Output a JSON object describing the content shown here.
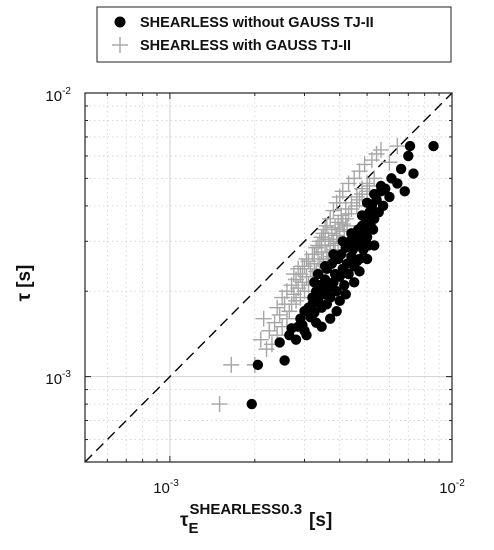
{
  "chart_data": {
    "type": "scatter",
    "xscale": "log",
    "yscale": "log",
    "xlim": [
      0.0005,
      0.01
    ],
    "ylim": [
      0.0005,
      0.01
    ],
    "grid": true,
    "legend_position": "top",
    "xlabel": {
      "base": "τ",
      "subscript": "E",
      "superscript": "SHEARLESS0.3",
      "unit": "[s]"
    },
    "ylabel": {
      "symbol": "τ",
      "unit": "[s]"
    },
    "x_ticks": [
      {
        "value": 0.001,
        "mantissa": "10",
        "exponent": "-3"
      },
      {
        "value": 0.01,
        "mantissa": "10",
        "exponent": "-2"
      }
    ],
    "y_ticks": [
      {
        "value": 0.001,
        "mantissa": "10",
        "exponent": "-3"
      },
      {
        "value": 0.01,
        "mantissa": "10",
        "exponent": "-2"
      }
    ],
    "reference_line": {
      "style": "dashed",
      "color": "#000000",
      "points": [
        [
          0.0005,
          0.0005
        ],
        [
          0.01,
          0.01
        ]
      ]
    },
    "series": [
      {
        "name": "SHEARLESS without GAUSS TJ-II",
        "marker": "filled-circle",
        "color": "#000000",
        "points": [
          [
            0.00195,
            0.0008
          ],
          [
            0.00205,
            0.0011
          ],
          [
            0.00255,
            0.00114
          ],
          [
            0.00245,
            0.00132
          ],
          [
            0.00265,
            0.0014
          ],
          [
            0.0027,
            0.00148
          ],
          [
            0.0028,
            0.00135
          ],
          [
            0.00285,
            0.0015
          ],
          [
            0.0029,
            0.0016
          ],
          [
            0.00295,
            0.00152
          ],
          [
            0.003,
            0.0017
          ],
          [
            0.00305,
            0.0014
          ],
          [
            0.0031,
            0.00175
          ],
          [
            0.00315,
            0.00162
          ],
          [
            0.0032,
            0.0018
          ],
          [
            0.0032,
            0.0019
          ],
          [
            0.00325,
            0.00168
          ],
          [
            0.0033,
            0.002
          ],
          [
            0.0033,
            0.00155
          ],
          [
            0.00335,
            0.00185
          ],
          [
            0.0034,
            0.0021
          ],
          [
            0.00345,
            0.00175
          ],
          [
            0.0035,
            0.00195
          ],
          [
            0.00355,
            0.0022
          ],
          [
            0.0036,
            0.0018
          ],
          [
            0.0036,
            0.0024
          ],
          [
            0.00365,
            0.00205
          ],
          [
            0.0037,
            0.0019
          ],
          [
            0.00375,
            0.0025
          ],
          [
            0.0038,
            0.00215
          ],
          [
            0.00385,
            0.0023
          ],
          [
            0.0039,
            0.002
          ],
          [
            0.00395,
            0.0026
          ],
          [
            0.004,
            0.00225
          ],
          [
            0.00405,
            0.0027
          ],
          [
            0.0041,
            0.0024
          ],
          [
            0.00415,
            0.0021
          ],
          [
            0.0042,
            0.00285
          ],
          [
            0.00425,
            0.0025
          ],
          [
            0.0043,
            0.0023
          ],
          [
            0.00435,
            0.003
          ],
          [
            0.0044,
            0.00265
          ],
          [
            0.00445,
            0.0028
          ],
          [
            0.0045,
            0.00245
          ],
          [
            0.00455,
            0.0031
          ],
          [
            0.0046,
            0.0029
          ],
          [
            0.00465,
            0.0033
          ],
          [
            0.0047,
            0.0026
          ],
          [
            0.00475,
            0.003
          ],
          [
            0.0048,
            0.0034
          ],
          [
            0.00485,
            0.0028
          ],
          [
            0.0049,
            0.0032
          ],
          [
            0.00495,
            0.0036
          ],
          [
            0.005,
            0.0031
          ],
          [
            0.00505,
            0.0029
          ],
          [
            0.0051,
            0.0038
          ],
          [
            0.00515,
            0.0034
          ],
          [
            0.0052,
            0.004
          ],
          [
            0.00525,
            0.0033
          ],
          [
            0.0053,
            0.0036
          ],
          [
            0.0054,
            0.0042
          ],
          [
            0.0055,
            0.0038
          ],
          [
            0.0056,
            0.0045
          ],
          [
            0.0057,
            0.004
          ],
          [
            0.0058,
            0.0046
          ],
          [
            0.006,
            0.0043
          ],
          [
            0.0061,
            0.005
          ],
          [
            0.0064,
            0.0048
          ],
          [
            0.0066,
            0.0054
          ],
          [
            0.0068,
            0.0045
          ],
          [
            0.007,
            0.006
          ],
          [
            0.0071,
            0.0065
          ],
          [
            0.0073,
            0.0052
          ],
          [
            0.0086,
            0.0065
          ],
          [
            0.0039,
            0.0017
          ],
          [
            0.0042,
            0.00195
          ],
          [
            0.0037,
            0.0016
          ],
          [
            0.0045,
            0.00215
          ],
          [
            0.0047,
            0.00235
          ],
          [
            0.005,
            0.0026
          ],
          [
            0.0053,
            0.0029
          ],
          [
            0.00345,
            0.0015
          ],
          [
            0.003,
            0.00145
          ],
          [
            0.0038,
            0.0027
          ],
          [
            0.0041,
            0.003
          ],
          [
            0.0044,
            0.0032
          ],
          [
            0.0048,
            0.0037
          ],
          [
            0.00355,
            0.00245
          ],
          [
            0.00325,
            0.00215
          ],
          [
            0.005,
            0.0041
          ],
          [
            0.0053,
            0.0044
          ],
          [
            0.0056,
            0.0047
          ],
          [
            0.004,
            0.00185
          ],
          [
            0.0046,
            0.00255
          ],
          [
            0.0036,
            0.00205
          ],
          [
            0.00335,
            0.0023
          ]
        ]
      },
      {
        "name": "SHEARLESS with GAUSS TJ-II",
        "marker": "plus",
        "color": "#a6a6a6",
        "points": [
          [
            0.0015,
            0.0008
          ],
          [
            0.00165,
            0.0011
          ],
          [
            0.002,
            0.0011
          ],
          [
            0.0021,
            0.00135
          ],
          [
            0.00215,
            0.0016
          ],
          [
            0.00225,
            0.00145
          ],
          [
            0.00235,
            0.00155
          ],
          [
            0.0024,
            0.00175
          ],
          [
            0.00245,
            0.00165
          ],
          [
            0.0025,
            0.0019
          ],
          [
            0.00255,
            0.0018
          ],
          [
            0.0026,
            0.002
          ],
          [
            0.00265,
            0.0017
          ],
          [
            0.0027,
            0.0021
          ],
          [
            0.00275,
            0.00195
          ],
          [
            0.0028,
            0.0022
          ],
          [
            0.00285,
            0.00205
          ],
          [
            0.0029,
            0.0023
          ],
          [
            0.00295,
            0.00215
          ],
          [
            0.003,
            0.00245
          ],
          [
            0.00305,
            0.00225
          ],
          [
            0.0031,
            0.00255
          ],
          [
            0.00315,
            0.0024
          ],
          [
            0.0032,
            0.0027
          ],
          [
            0.00325,
            0.0025
          ],
          [
            0.0033,
            0.00285
          ],
          [
            0.00335,
            0.0026
          ],
          [
            0.0034,
            0.003
          ],
          [
            0.00345,
            0.00275
          ],
          [
            0.0035,
            0.0032
          ],
          [
            0.00355,
            0.0029
          ],
          [
            0.0036,
            0.0034
          ],
          [
            0.00365,
            0.00305
          ],
          [
            0.0037,
            0.0036
          ],
          [
            0.00375,
            0.0032
          ],
          [
            0.0038,
            0.00385
          ],
          [
            0.00385,
            0.00335
          ],
          [
            0.0039,
            0.0041
          ],
          [
            0.00395,
            0.0035
          ],
          [
            0.004,
            0.0043
          ],
          [
            0.00405,
            0.0037
          ],
          [
            0.0041,
            0.0045
          ],
          [
            0.0042,
            0.0039
          ],
          [
            0.0043,
            0.0048
          ],
          [
            0.0044,
            0.0041
          ],
          [
            0.0045,
            0.005
          ],
          [
            0.0046,
            0.0043
          ],
          [
            0.0047,
            0.0053
          ],
          [
            0.0048,
            0.0046
          ],
          [
            0.0049,
            0.0056
          ],
          [
            0.005,
            0.0048
          ],
          [
            0.0052,
            0.0058
          ],
          [
            0.0054,
            0.0061
          ],
          [
            0.0056,
            0.0063
          ],
          [
            0.006,
            0.0057
          ],
          [
            0.0064,
            0.0065
          ],
          [
            0.0029,
            0.0019
          ],
          [
            0.003,
            0.002
          ],
          [
            0.0031,
            0.0021
          ],
          [
            0.0032,
            0.00225
          ],
          [
            0.0033,
            0.00235
          ],
          [
            0.0034,
            0.0025
          ],
          [
            0.0035,
            0.0026
          ],
          [
            0.0036,
            0.00275
          ],
          [
            0.0037,
            0.0029
          ],
          [
            0.0038,
            0.003
          ],
          [
            0.0039,
            0.00315
          ],
          [
            0.004,
            0.0033
          ],
          [
            0.0041,
            0.00345
          ],
          [
            0.0042,
            0.0036
          ],
          [
            0.0043,
            0.00375
          ],
          [
            0.0044,
            0.0039
          ],
          [
            0.0027,
            0.0018
          ],
          [
            0.0028,
            0.00185
          ],
          [
            0.0026,
            0.0016
          ],
          [
            0.0025,
            0.0015
          ],
          [
            0.0024,
            0.0014
          ],
          [
            0.0023,
            0.0013
          ],
          [
            0.0022,
            0.00125
          ],
          [
            0.0035,
            0.00235
          ],
          [
            0.00365,
            0.00255
          ],
          [
            0.00375,
            0.00265
          ],
          [
            0.00385,
            0.0028
          ],
          [
            0.00395,
            0.00295
          ],
          [
            0.00325,
            0.0027
          ],
          [
            0.00335,
            0.0029
          ],
          [
            0.00345,
            0.0031
          ],
          [
            0.00355,
            0.0033
          ],
          [
            0.00305,
            0.0026
          ],
          [
            0.00295,
            0.00245
          ],
          [
            0.00285,
            0.0024
          ],
          [
            0.00275,
            0.0023
          ],
          [
            0.0046,
            0.004
          ],
          [
            0.0047,
            0.0042
          ],
          [
            0.0048,
            0.0044
          ],
          [
            0.005,
            0.0045
          ],
          [
            0.0051,
            0.0047
          ],
          [
            0.0053,
            0.005
          ],
          [
            0.00415,
            0.00325
          ],
          [
            0.00425,
            0.0034
          ]
        ]
      }
    ]
  }
}
